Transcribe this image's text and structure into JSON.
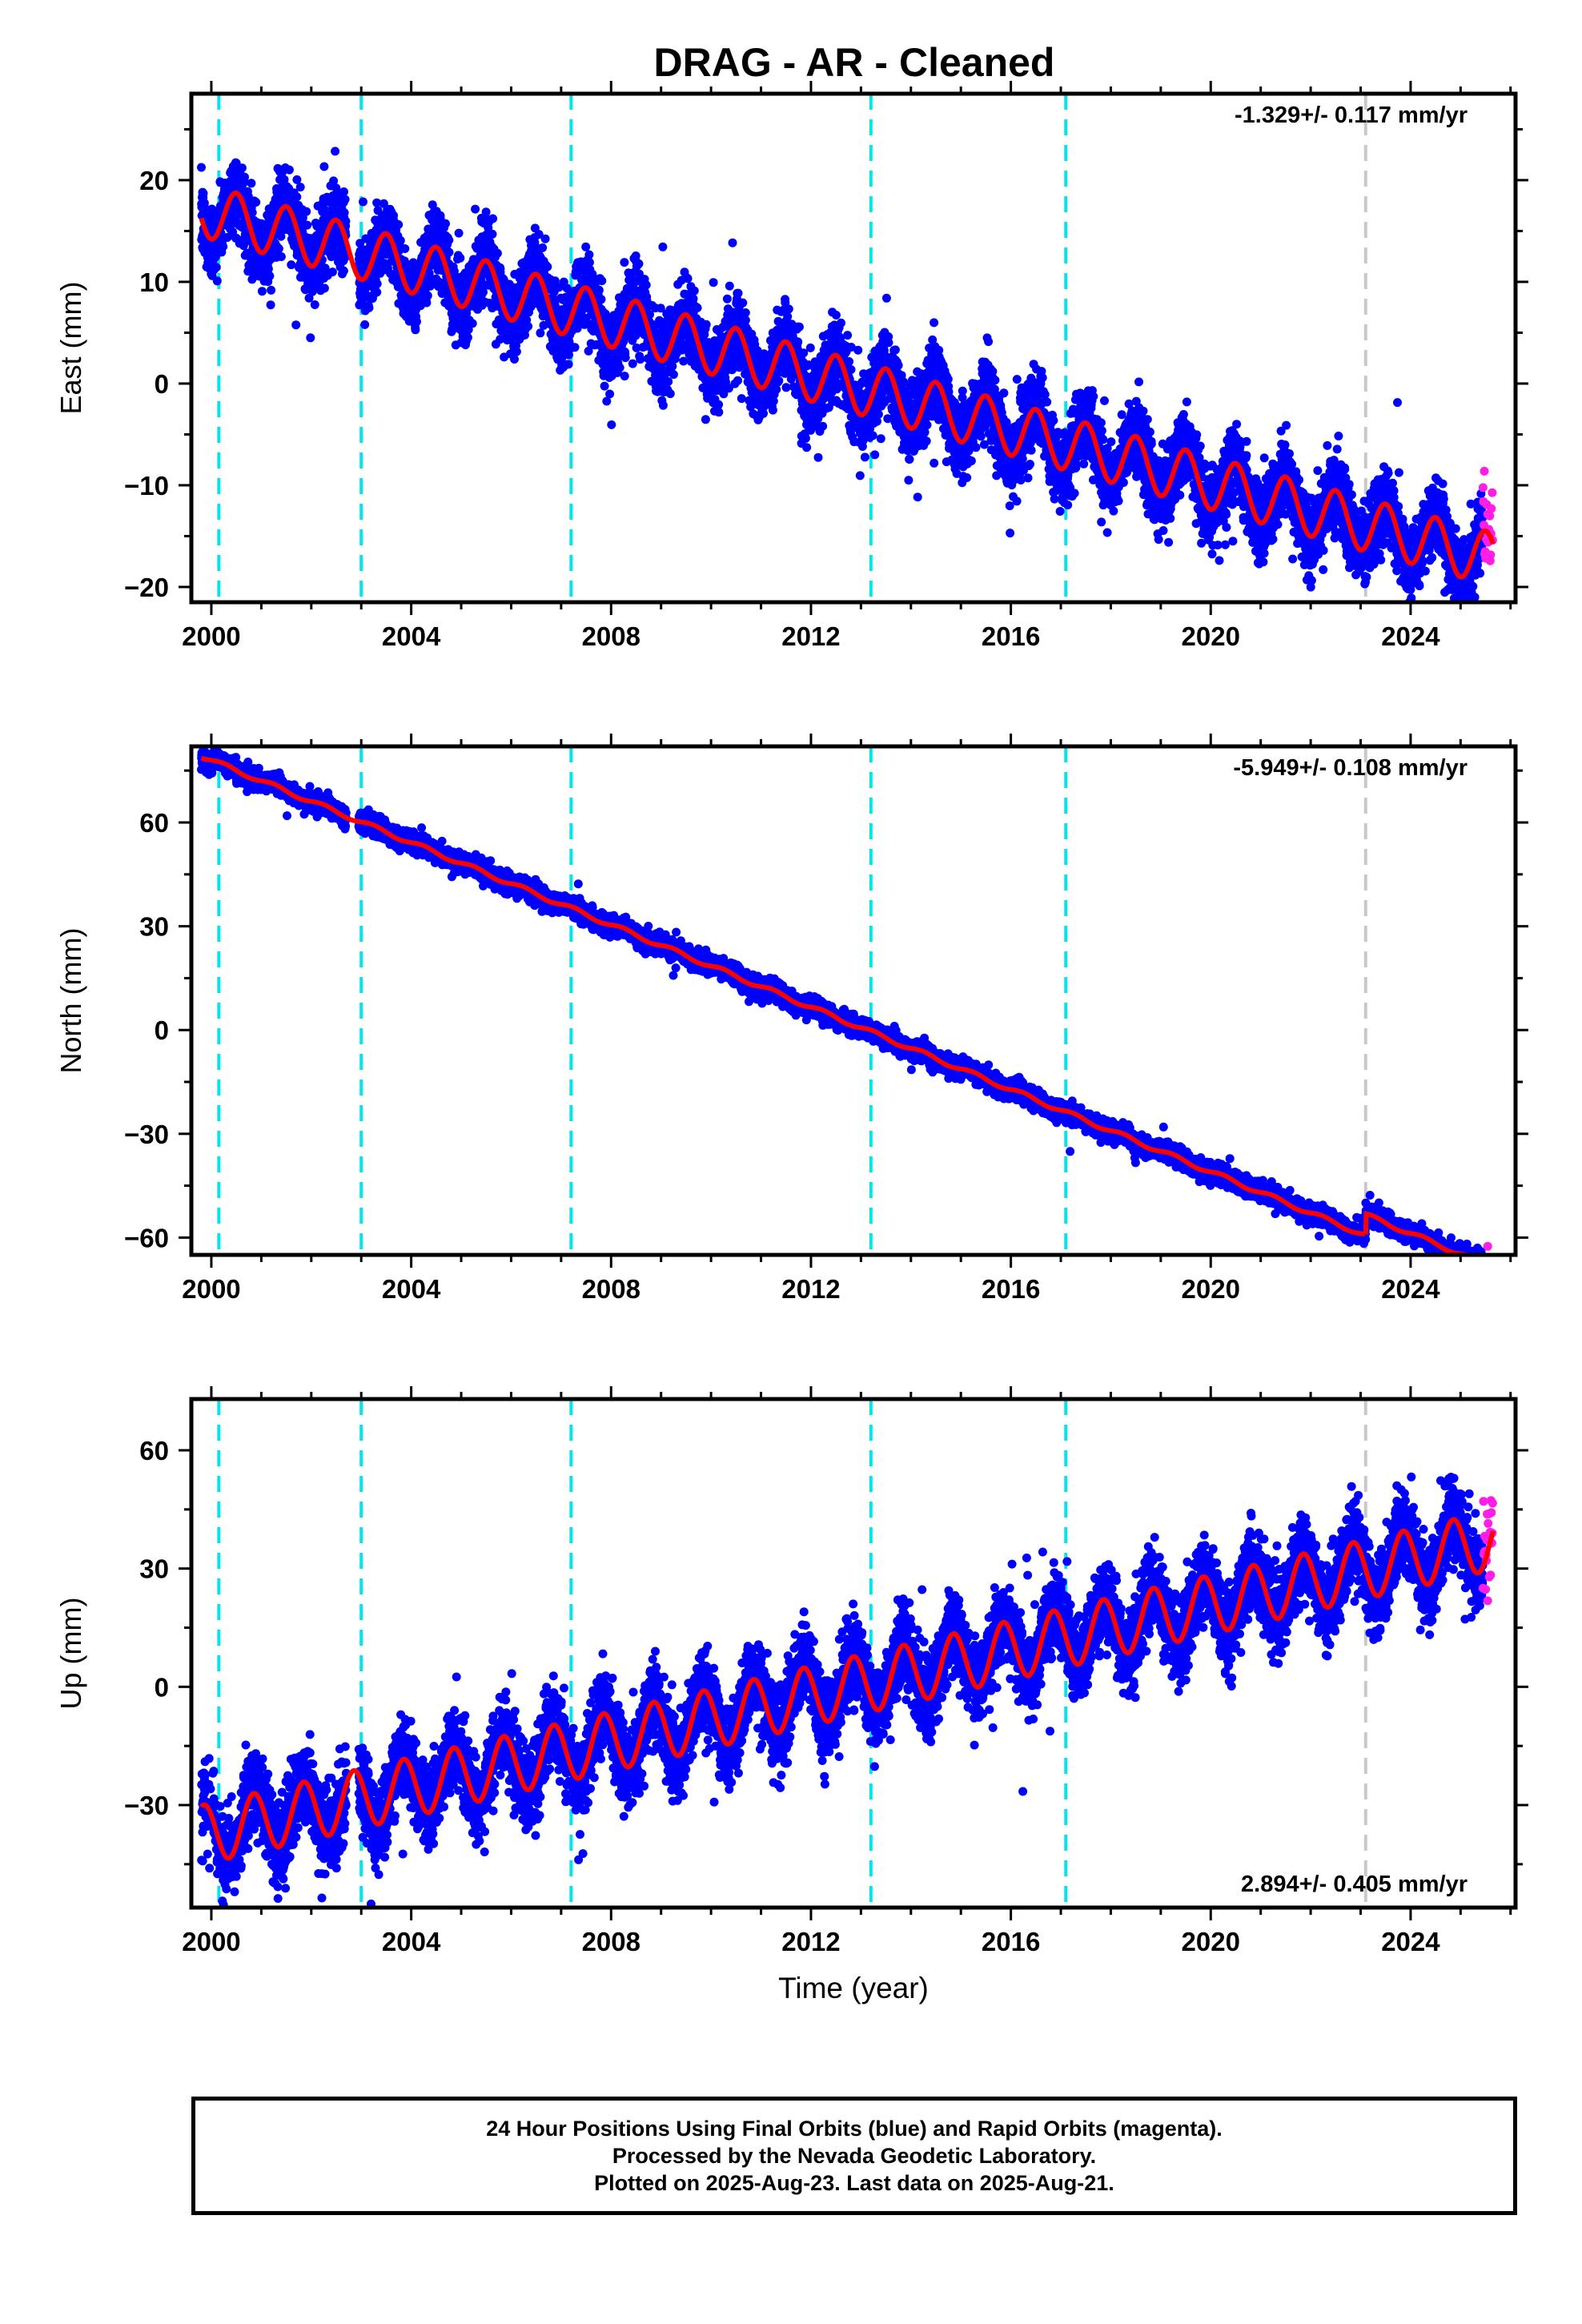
{
  "colors": {
    "final_orbits": "#0000ff",
    "rapid_orbits": "#ff1ee6",
    "model_fit": "#ff0000",
    "equipment_change": "#00e5ee",
    "other_event": "#c8c8c8",
    "axes": "#000000"
  },
  "chart_data": [
    {
      "type": "scatter",
      "title": "DRAG  - AR - Cleaned",
      "xlabel": "",
      "ylabel": "East (mm)",
      "xlim": [
        1999.6,
        2026.1
      ],
      "ylim": [
        -21.5,
        28.5
      ],
      "xticks": [
        2000,
        2004,
        2008,
        2012,
        2016,
        2020,
        2024
      ],
      "yticks": [
        -20,
        -10,
        0,
        10,
        20
      ],
      "annotation": "-1.329+/- 0.117 mm/yr",
      "annotation_position": "top-right",
      "model": {
        "start": 1999.8,
        "offset_2000": 16.8,
        "rate_mm_yr": -1.329,
        "annual_amplitude": 2.6,
        "phase": 0.25
      },
      "noise_mm": 1.8,
      "data_gap": [
        2002.7,
        2002.95
      ],
      "rapid_orbit_span": [
        2025.45,
        2025.65
      ],
      "equipment_change_epochs": [
        2000.15,
        2003.0,
        2007.2,
        2013.2,
        2017.1
      ],
      "other_event_epochs": [
        2023.1
      ]
    },
    {
      "type": "scatter",
      "title": "",
      "xlabel": "",
      "ylabel": "North (mm)",
      "xlim": [
        1999.6,
        2026.1
      ],
      "ylim": [
        -65,
        82
      ],
      "xticks": [
        2000,
        2004,
        2008,
        2012,
        2016,
        2020,
        2024
      ],
      "yticks": [
        -60,
        -30,
        0,
        30,
        60
      ],
      "annotation": "-5.949+/- 0.108 mm/yr",
      "annotation_position": "top-right",
      "model": {
        "start": 1999.8,
        "offset_2000": 78.0,
        "rate_mm_yr": -5.949,
        "annual_amplitude": 0.6,
        "phase": 0.0
      },
      "noise_mm": 1.3,
      "post_event_shift": {
        "epoch": 2023.1,
        "shift_mm": 6.0
      },
      "data_gap": [
        2002.7,
        2002.95
      ],
      "rapid_orbit_span": [
        2025.45,
        2025.65
      ],
      "equipment_change_epochs": [
        2000.15,
        2003.0,
        2007.2,
        2013.2,
        2017.1
      ],
      "other_event_epochs": [
        2023.1
      ]
    },
    {
      "type": "scatter",
      "title": "",
      "xlabel": "Time (year)",
      "ylabel": "Up (mm)",
      "xlim": [
        1999.6,
        2026.1
      ],
      "ylim": [
        -56,
        73
      ],
      "xticks": [
        2000,
        2004,
        2008,
        2012,
        2016,
        2020,
        2024
      ],
      "yticks": [
        -30,
        0,
        30,
        60
      ],
      "annotation": "2.894+/- 0.405 mm/yr",
      "annotation_position": "bottom-right",
      "model": {
        "start": 1999.8,
        "offset_2000": -37.0,
        "rate_mm_yr": 2.894,
        "annual_amplitude": 7.5,
        "phase": 0.6
      },
      "noise_mm": 5.0,
      "data_gap": [
        2002.7,
        2002.95
      ],
      "rapid_orbit_span": [
        2025.45,
        2025.65
      ],
      "equipment_change_epochs": [
        2000.15,
        2003.0,
        2007.2,
        2013.2,
        2017.1
      ],
      "other_event_epochs": [
        2023.1
      ]
    }
  ],
  "caption": {
    "line1": "24 Hour Positions Using Final Orbits (blue) and Rapid Orbits (magenta).",
    "line2": "Processed by the Nevada Geodetic Laboratory.",
    "line3": "Plotted on 2025-Aug-23. Last data on 2025-Aug-21."
  }
}
